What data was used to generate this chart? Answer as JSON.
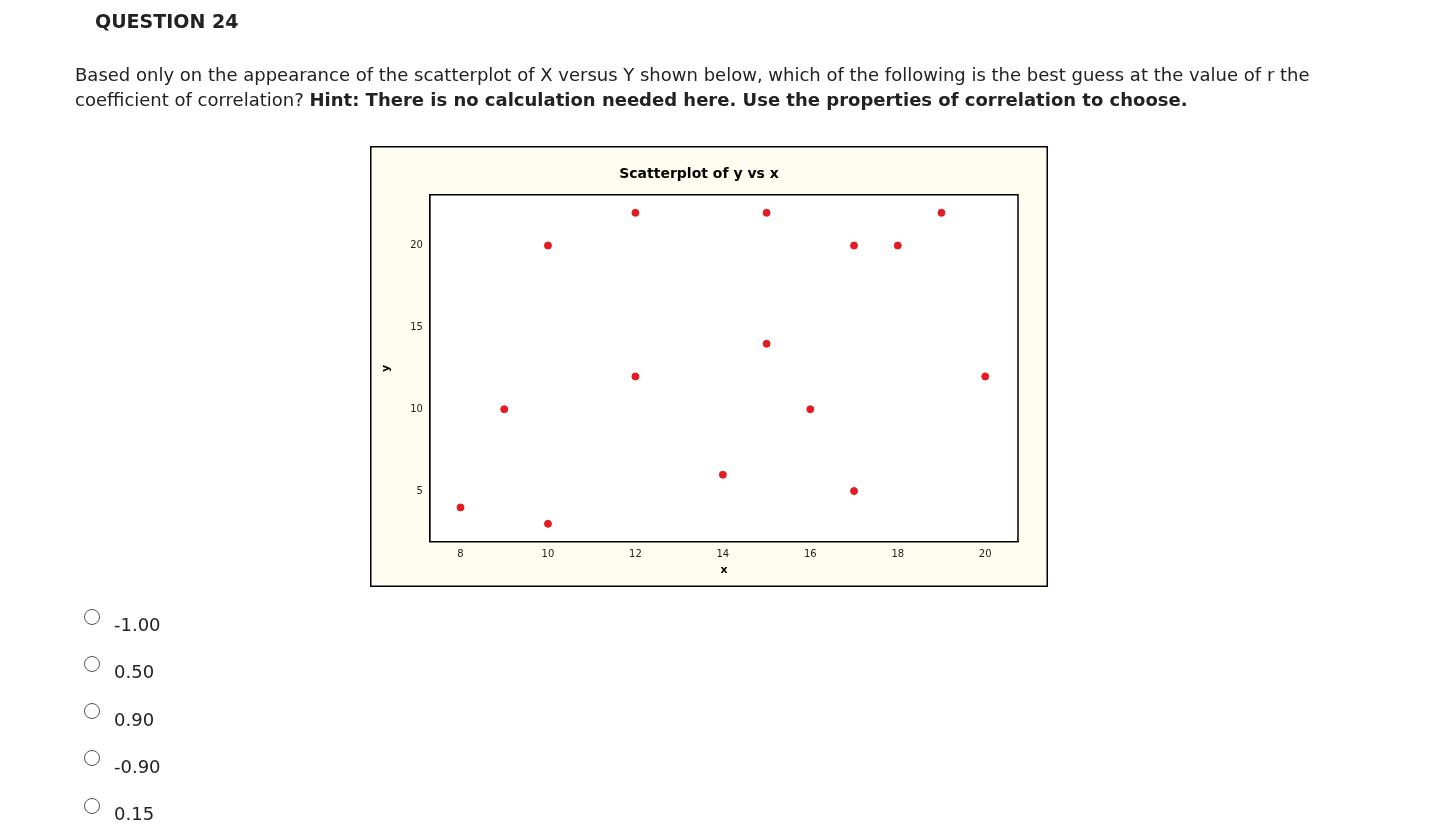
{
  "chart_data": {
    "type": "scatter",
    "title": "Scatterplot of y vs x",
    "xlabel": "x",
    "ylabel": "y",
    "x": [
      8,
      9,
      10,
      10,
      12,
      12,
      14,
      15,
      15,
      16,
      17,
      17,
      18,
      19,
      20
    ],
    "series": [
      {
        "color": "#e31b23",
        "values": [
          4,
          10,
          20,
          3,
          22,
          12,
          6,
          22,
          14,
          10,
          20,
          5,
          20,
          22,
          12
        ]
      }
    ],
    "xlim": [
      7.3,
      20.75
    ],
    "ylim": [
      1.9,
      23.1
    ],
    "xticks": [
      8,
      10,
      12,
      14,
      16,
      18,
      20
    ],
    "yticks": [
      5,
      10,
      15,
      20
    ],
    "grid": false,
    "legend": false,
    "marker": "circle",
    "annotations": [
      "QUESTION 24",
      "Based only on the appearance of the scatterplot of X versus Y shown below, which of the following is the best guess at the value of r the coefficient of correlation?",
      "Hint: There is no calculation needed here. Use the properties of correlation to choose.",
      "-1.00",
      "0.50",
      "0.90",
      "-0.90",
      "0.15"
    ]
  }
}
